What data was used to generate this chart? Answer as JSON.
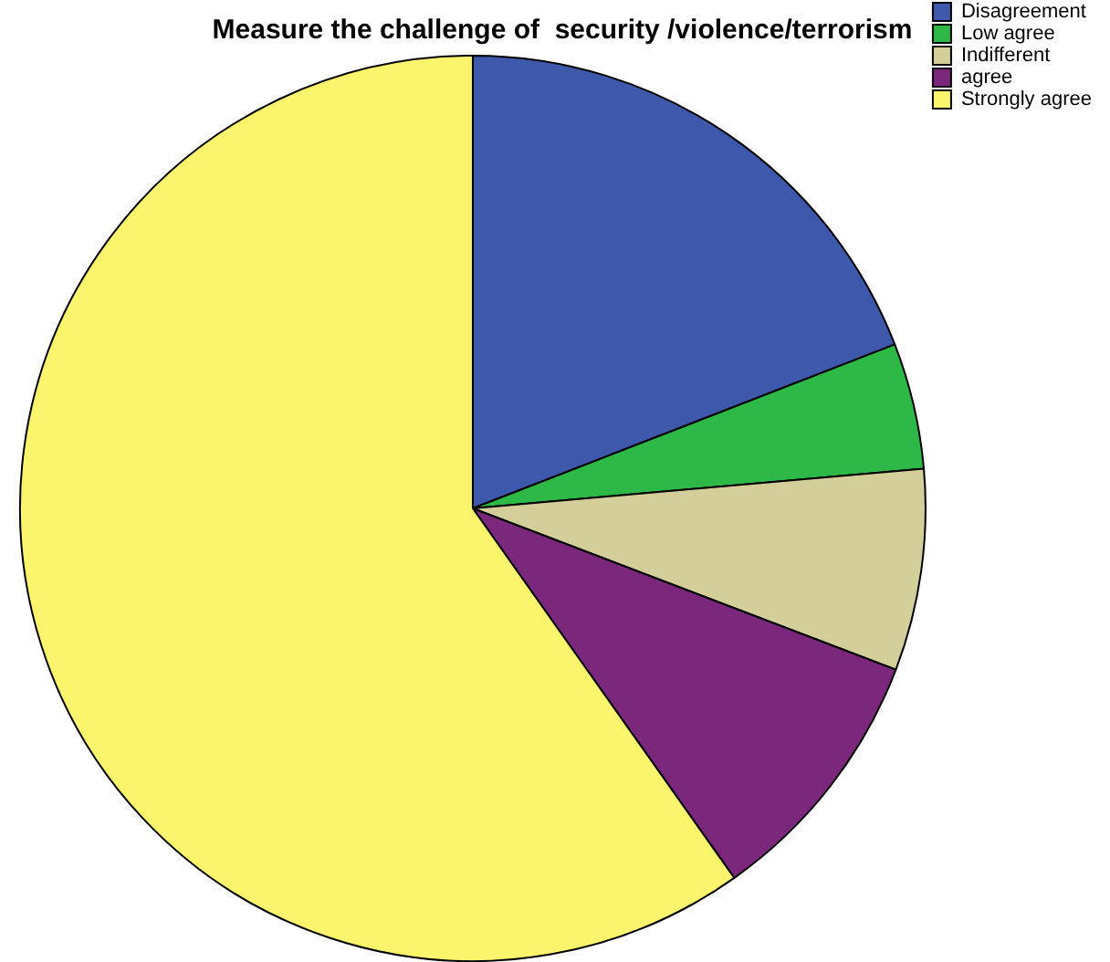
{
  "chart_data": {
    "type": "pie",
    "title": "Measure the challenge of  security /violence/terrorism",
    "categories": [
      "Disagreement",
      "Low agree",
      "Indifferent",
      "agree",
      "Strongly agree"
    ],
    "values": [
      19.1,
      4.5,
      7.2,
      9.4,
      59.8
    ],
    "colors": [
      "#3e58ac",
      "#2eb848",
      "#d4cf9a",
      "#7b287c",
      "#fbf56e"
    ],
    "legend": "top right"
  }
}
